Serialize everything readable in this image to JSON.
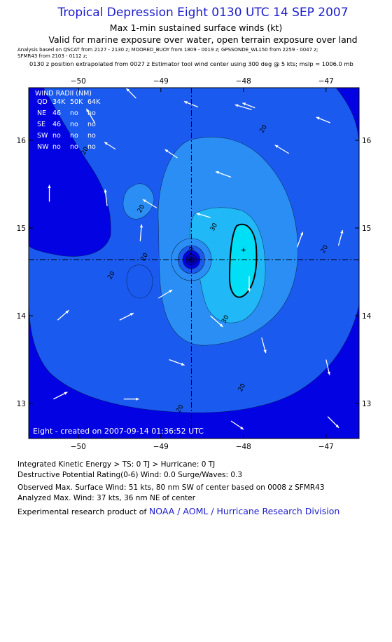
{
  "header": {
    "title": "Tropical Depression Eight 0130 UTC 14 SEP 2007",
    "subtitle": "Max 1-min sustained surface winds (kt)",
    "validity": "Valid for marine exposure over water, open terrain exposure over land",
    "analysis_line1": "Analysis based on   QSCAT from  2127 - 2130 z;   MOORED_BUOY from  1809 - 0019 z;  GPSSONDE_WL150 from  2259 - 0047 z;",
    "analysis_line2": "SFMR43 from  2103 - 0112 z;",
    "position_line": "0130 z position extrapolated from 0027 z Estimator tool wind center using 300 deg @ 5 kts; mslp = 1006.0 mb"
  },
  "map": {
    "lon_range": [
      -50.6,
      -46.6
    ],
    "lat_range": [
      12.6,
      16.6
    ],
    "lon_ticks": [
      -50,
      -49,
      -48,
      -47
    ],
    "lat_ticks": [
      16,
      15,
      14,
      13
    ],
    "lon_labels": [
      "−50",
      "−49",
      "−48",
      "−47"
    ],
    "lat_labels": [
      "16",
      "15",
      "14",
      "13"
    ],
    "storm_center": {
      "lon": -48.63,
      "lat": 14.64
    },
    "max_wind_marker": {
      "lon": -48.0,
      "lat": 14.75
    },
    "contour_labels": [
      {
        "text": "20",
        "lon": -47.74,
        "lat": 16.12
      },
      {
        "text": "20",
        "lon": -49.9,
        "lat": 15.87
      },
      {
        "text": "20",
        "lon": -49.22,
        "lat": 15.21
      },
      {
        "text": "20",
        "lon": -49.18,
        "lat": 14.66
      },
      {
        "text": "20",
        "lon": -49.58,
        "lat": 14.45
      },
      {
        "text": "20",
        "lon": -48.62,
        "lat": 14.73
      },
      {
        "text": "30",
        "lon": -48.34,
        "lat": 15.0
      },
      {
        "text": "30",
        "lon": -48.2,
        "lat": 13.95
      },
      {
        "text": "20",
        "lon": -47.0,
        "lat": 14.75
      },
      {
        "text": "20",
        "lon": -48.0,
        "lat": 13.17
      },
      {
        "text": "20",
        "lon": -48.75,
        "lat": 12.93
      }
    ],
    "wind_vectors": [
      {
        "lon": -47.86,
        "lat": 16.37,
        "u": -18,
        "v": -7
      },
      {
        "lon": -49.55,
        "lat": 15.9,
        "u": -16,
        "v": -10
      },
      {
        "lon": -49.8,
        "lat": 16.2,
        "u": -12,
        "v": -20
      },
      {
        "lon": -49.3,
        "lat": 16.48,
        "u": -14,
        "v": -14
      },
      {
        "lon": -48.55,
        "lat": 16.38,
        "u": -20,
        "v": -8
      },
      {
        "lon": -47.9,
        "lat": 16.35,
        "u": -24,
        "v": -7
      },
      {
        "lon": -48.8,
        "lat": 15.8,
        "u": -18,
        "v": -12
      },
      {
        "lon": -48.15,
        "lat": 15.58,
        "u": -22,
        "v": -8
      },
      {
        "lon": -47.45,
        "lat": 15.85,
        "u": -20,
        "v": -12
      },
      {
        "lon": -46.95,
        "lat": 16.2,
        "u": -20,
        "v": -8
      },
      {
        "lon": -50.35,
        "lat": 15.3,
        "u": 0,
        "v": -24
      },
      {
        "lon": -49.65,
        "lat": 15.25,
        "u": -3,
        "v": -24
      },
      {
        "lon": -49.05,
        "lat": 15.23,
        "u": -20,
        "v": -12
      },
      {
        "lon": -48.4,
        "lat": 15.12,
        "u": -20,
        "v": -6
      },
      {
        "lon": -47.35,
        "lat": 14.78,
        "u": 8,
        "v": -22
      },
      {
        "lon": -46.85,
        "lat": 14.8,
        "u": 6,
        "v": -22
      },
      {
        "lon": -49.25,
        "lat": 14.85,
        "u": 2,
        "v": -24
      },
      {
        "lon": -47.93,
        "lat": 14.45,
        "u": 0,
        "v": 22
      },
      {
        "lon": -49.03,
        "lat": 14.2,
        "u": 20,
        "v": -12
      },
      {
        "lon": -48.4,
        "lat": 14.0,
        "u": 18,
        "v": 16
      },
      {
        "lon": -47.78,
        "lat": 13.75,
        "u": 6,
        "v": 22
      },
      {
        "lon": -50.25,
        "lat": 13.95,
        "u": 16,
        "v": -14
      },
      {
        "lon": -49.5,
        "lat": 13.95,
        "u": 20,
        "v": -10
      },
      {
        "lon": -47.0,
        "lat": 13.5,
        "u": 5,
        "v": 22
      },
      {
        "lon": -48.9,
        "lat": 13.5,
        "u": 22,
        "v": 8
      },
      {
        "lon": -50.3,
        "lat": 13.05,
        "u": 20,
        "v": -10
      },
      {
        "lon": -49.45,
        "lat": 13.05,
        "u": 22,
        "v": 0
      },
      {
        "lon": -48.15,
        "lat": 12.8,
        "u": 18,
        "v": 12
      },
      {
        "lon": -46.98,
        "lat": 12.85,
        "u": 16,
        "v": 16
      }
    ],
    "colors": {
      "lt10": "#0202e2",
      "10to20": "#1a5aee",
      "20to30": "#2a8ef4",
      "30to40": "#20b8f6",
      "40to50": "#00dff6",
      "frame": "#000000",
      "arrow": "#ffffff"
    }
  },
  "wind_radii": {
    "title": "WIND RADII (NM)",
    "headers": [
      "QD",
      "34K",
      "50K",
      "64K"
    ],
    "rows": [
      [
        "NE",
        "46",
        "no",
        "no"
      ],
      [
        "SE",
        "46",
        "no",
        "no"
      ],
      [
        "SW",
        "no",
        "no",
        "no"
      ],
      [
        "NW",
        "no",
        "no",
        "no"
      ]
    ]
  },
  "credit": "Eight  -  created on 2007-09-14 01:36:52 UTC",
  "footer": {
    "ike": "Integrated Kinetic Energy > TS: 0 TJ   > Hurricane: 0 TJ",
    "dpr": "Destructive Potential Rating(0-6)   Wind: 0.0 Surge/Waves: 0.3",
    "observed": "Observed Max. Surface Wind: 51 kts, 80 nm SW of center based on 0008 z SFMR43",
    "analyzed": "Analyzed Max. Wind: 37 kts, 36 nm NE of center",
    "product_prefix": "Experimental research product of ",
    "product_org": "NOAA / AOML / Hurricane Research Division"
  }
}
